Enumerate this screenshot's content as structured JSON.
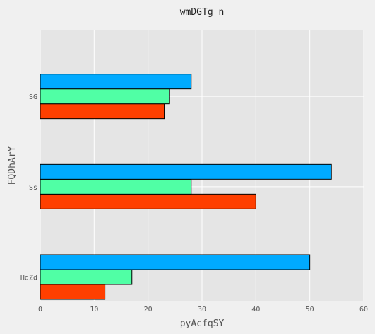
{
  "chart_data": {
    "type": "bar",
    "orientation": "horizontal",
    "title": "wmDGTg n",
    "xlabel": "pyAcfqSY",
    "ylabel": "FQDhArY",
    "categories": [
      "HdZd",
      "Ss",
      "SG"
    ],
    "series": [
      {
        "values": [
          12,
          40,
          23
        ],
        "color": "#ff3f00"
      },
      {
        "values": [
          17,
          28,
          24
        ],
        "color": "#50ffa5"
      },
      {
        "values": [
          50,
          54,
          28
        ],
        "color": "#00aaff"
      }
    ],
    "xlim": [
      0,
      60
    ],
    "xticks": [
      0,
      10,
      20,
      30,
      40,
      50,
      60
    ],
    "grid": true,
    "plot_background": "#e5e5e5",
    "figure_background": "#f0f0f0"
  }
}
